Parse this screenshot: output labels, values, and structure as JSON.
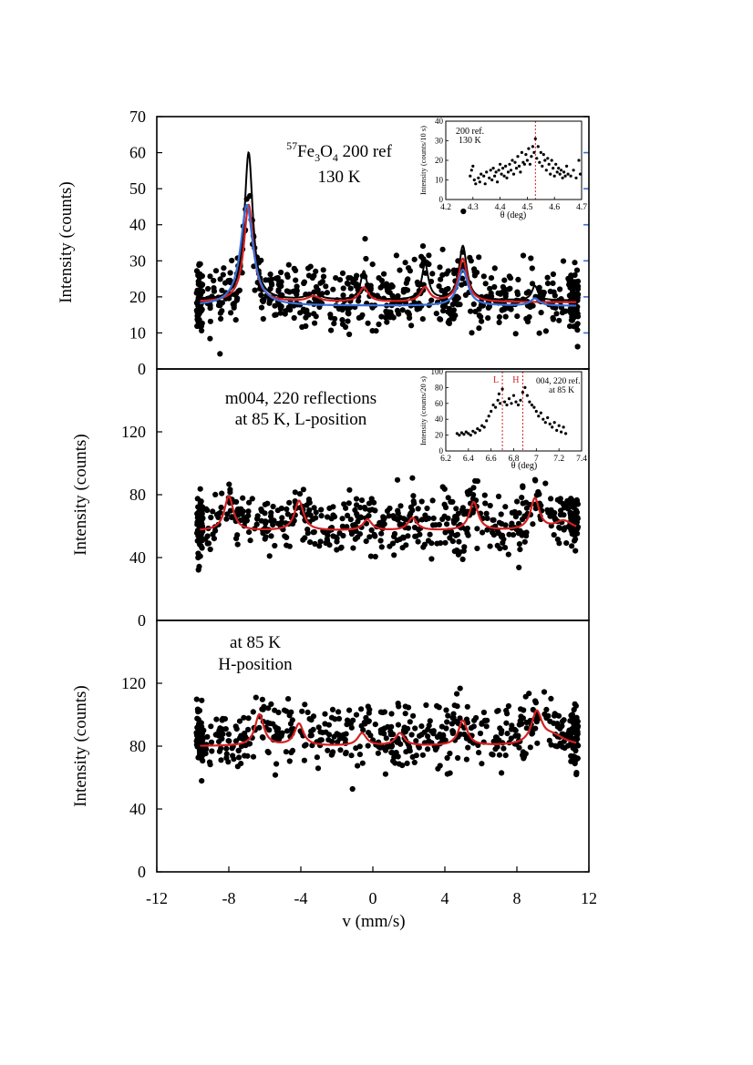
{
  "figure": {
    "xlabel": "v (mm/s)",
    "x_ticks": [
      -12,
      -8,
      -4,
      0,
      4,
      8,
      12
    ]
  },
  "chart_data": [
    {
      "id": "panel-a",
      "type": "scatter",
      "ylabel": "Intensity (counts)",
      "xlim": [
        -12,
        12
      ],
      "ylim": [
        0,
        70
      ],
      "y_ticks": [
        0,
        10,
        20,
        30,
        40,
        50,
        60,
        70
      ],
      "annotations": {
        "label_sup": "57",
        "label_main": "Fe",
        "label_sub1": "3",
        "label_mid": "O",
        "label_sub2": "4",
        "label_tail": " 200 ref",
        "temperature": "130 K"
      },
      "scatter": {
        "x_range": [
          -9.8,
          11.4
        ],
        "n": 700,
        "baseline": 19,
        "spread": 4.5
      },
      "series": [
        {
          "color": "#000000",
          "baseline": 19,
          "peaks": [
            {
              "x": -6.9,
              "h": 41,
              "w": 0.28
            },
            {
              "x": -0.5,
              "h": 8,
              "w": 0.22
            },
            {
              "x": 2.9,
              "h": 10,
              "w": 0.22
            },
            {
              "x": 5.0,
              "h": 15,
              "w": 0.26
            },
            {
              "x": 9.0,
              "h": 4,
              "w": 0.2
            },
            {
              "x": -3.3,
              "h": 2,
              "w": 0.4
            }
          ]
        },
        {
          "color": "#d42020",
          "baseline": 18.5,
          "peaks": [
            {
              "x": -6.9,
              "h": 27,
              "w": 0.32
            },
            {
              "x": -0.5,
              "h": 4,
              "w": 0.3
            },
            {
              "x": 2.9,
              "h": 4,
              "w": 0.3
            },
            {
              "x": 5.0,
              "h": 12,
              "w": 0.3
            },
            {
              "x": -3.3,
              "h": 1.5,
              "w": 0.4
            }
          ]
        },
        {
          "color": "#3a6fd8",
          "baseline": 17.5,
          "peaks": [
            {
              "x": -7.0,
              "h": 28,
              "w": 0.42
            },
            {
              "x": 5.0,
              "h": 10,
              "w": 0.34
            },
            {
              "x": 9.0,
              "h": 2,
              "w": 0.3
            }
          ]
        }
      ],
      "inset": {
        "label1": "200 ref.",
        "label2": "130 K",
        "ylabel": "Intensity (counts/10 s)",
        "xlabel": "θ (deg)",
        "xlim": [
          4.2,
          4.7
        ],
        "ylim": [
          0,
          40
        ],
        "x_ticks": [
          4.2,
          4.3,
          4.4,
          4.5,
          4.6,
          4.7
        ],
        "y_ticks": [
          0,
          10,
          20,
          30,
          40
        ],
        "markers": [
          {
            "x": 4.53,
            "label": ""
          }
        ],
        "points": [
          [
            4.29,
            12
          ],
          [
            4.295,
            15
          ],
          [
            4.3,
            17
          ],
          [
            4.305,
            10
          ],
          [
            4.31,
            8
          ],
          [
            4.32,
            11
          ],
          [
            4.325,
            9
          ],
          [
            4.33,
            13
          ],
          [
            4.34,
            12
          ],
          [
            4.345,
            8
          ],
          [
            4.35,
            14
          ],
          [
            4.36,
            11
          ],
          [
            4.365,
            15
          ],
          [
            4.37,
            10
          ],
          [
            4.375,
            16
          ],
          [
            4.38,
            12
          ],
          [
            4.385,
            14
          ],
          [
            4.39,
            9
          ],
          [
            4.395,
            15
          ],
          [
            4.4,
            18
          ],
          [
            4.405,
            13
          ],
          [
            4.41,
            16
          ],
          [
            4.415,
            12
          ],
          [
            4.42,
            17
          ],
          [
            4.425,
            11
          ],
          [
            4.43,
            14
          ],
          [
            4.435,
            18
          ],
          [
            4.44,
            15
          ],
          [
            4.445,
            20
          ],
          [
            4.45,
            13
          ],
          [
            4.455,
            19
          ],
          [
            4.46,
            16
          ],
          [
            4.465,
            22
          ],
          [
            4.47,
            17
          ],
          [
            4.475,
            14
          ],
          [
            4.48,
            24
          ],
          [
            4.485,
            19
          ],
          [
            4.49,
            18
          ],
          [
            4.495,
            23
          ],
          [
            4.5,
            20
          ],
          [
            4.505,
            26
          ],
          [
            4.51,
            18
          ],
          [
            4.515,
            22
          ],
          [
            4.52,
            27
          ],
          [
            4.525,
            24
          ],
          [
            4.53,
            31
          ],
          [
            4.535,
            21
          ],
          [
            4.54,
            27
          ],
          [
            4.545,
            19
          ],
          [
            4.55,
            24
          ],
          [
            4.555,
            17
          ],
          [
            4.56,
            23
          ],
          [
            4.565,
            20
          ],
          [
            4.57,
            15
          ],
          [
            4.575,
            21
          ],
          [
            4.58,
            18
          ],
          [
            4.585,
            13
          ],
          [
            4.59,
            20
          ],
          [
            4.595,
            16
          ],
          [
            4.6,
            12
          ],
          [
            4.605,
            18
          ],
          [
            4.61,
            14
          ],
          [
            4.615,
            16
          ],
          [
            4.62,
            13
          ],
          [
            4.625,
            15
          ],
          [
            4.63,
            11
          ],
          [
            4.635,
            14
          ],
          [
            4.64,
            12
          ],
          [
            4.645,
            17
          ],
          [
            4.65,
            13
          ],
          [
            4.66,
            12
          ],
          [
            4.67,
            15
          ],
          [
            4.68,
            11
          ],
          [
            4.69,
            20
          ],
          [
            4.695,
            13
          ]
        ]
      }
    },
    {
      "id": "panel-b",
      "type": "scatter",
      "ylabel": "Intensity (counts)",
      "xlim": [
        -12,
        12
      ],
      "ylim": [
        0,
        160
      ],
      "y_ticks": [
        0,
        40,
        80,
        120
      ],
      "annotations": {
        "line1": "m004, 220 reflections",
        "line2": "at 85 K, L-position"
      },
      "scatter": {
        "x_range": [
          -9.8,
          11.4
        ],
        "n": 640,
        "baseline": 60,
        "spread": 9
      },
      "series": [
        {
          "color": "#d42020",
          "baseline": 57,
          "peaks": [
            {
              "x": -8.0,
              "h": 22,
              "w": 0.3
            },
            {
              "x": -4.1,
              "h": 19,
              "w": 0.3
            },
            {
              "x": -0.3,
              "h": 7,
              "w": 0.3
            },
            {
              "x": 2.2,
              "h": 8,
              "w": 0.3
            },
            {
              "x": 5.6,
              "h": 18,
              "w": 0.3
            },
            {
              "x": 9.0,
              "h": 20,
              "w": 0.3
            },
            {
              "x": 10.6,
              "h": 6,
              "w": 0.6
            }
          ]
        }
      ],
      "inset": {
        "label1": "004, 220 ref.",
        "label2": "at 85 K",
        "ylabel": "Intensity (counts/20 s)",
        "xlabel": "θ (deg)",
        "xlim": [
          6.2,
          7.4
        ],
        "ylim": [
          0,
          100
        ],
        "x_ticks": [
          6.2,
          6.4,
          6.6,
          6.8,
          7.0,
          7.2,
          7.4
        ],
        "y_ticks": [
          0,
          20,
          40,
          60,
          80,
          100
        ],
        "markers": [
          {
            "x": 6.7,
            "label": "L"
          },
          {
            "x": 6.88,
            "label": "H"
          }
        ],
        "points": [
          [
            6.3,
            22
          ],
          [
            6.32,
            20
          ],
          [
            6.34,
            23
          ],
          [
            6.36,
            21
          ],
          [
            6.38,
            24
          ],
          [
            6.4,
            22
          ],
          [
            6.42,
            20
          ],
          [
            6.44,
            25
          ],
          [
            6.46,
            23
          ],
          [
            6.48,
            28
          ],
          [
            6.5,
            26
          ],
          [
            6.52,
            32
          ],
          [
            6.54,
            30
          ],
          [
            6.56,
            38
          ],
          [
            6.58,
            44
          ],
          [
            6.6,
            50
          ],
          [
            6.62,
            58
          ],
          [
            6.64,
            55
          ],
          [
            6.66,
            64
          ],
          [
            6.67,
            72
          ],
          [
            6.68,
            60
          ],
          [
            6.7,
            78
          ],
          [
            6.72,
            62
          ],
          [
            6.74,
            58
          ],
          [
            6.76,
            66
          ],
          [
            6.78,
            60
          ],
          [
            6.8,
            70
          ],
          [
            6.82,
            62
          ],
          [
            6.84,
            58
          ],
          [
            6.86,
            64
          ],
          [
            6.88,
            74
          ],
          [
            6.9,
            80
          ],
          [
            6.92,
            70
          ],
          [
            6.94,
            62
          ],
          [
            6.96,
            58
          ],
          [
            6.98,
            55
          ],
          [
            7.0,
            50
          ],
          [
            7.02,
            44
          ],
          [
            7.04,
            48
          ],
          [
            7.06,
            40
          ],
          [
            7.08,
            36
          ],
          [
            7.1,
            42
          ],
          [
            7.12,
            34
          ],
          [
            7.14,
            30
          ],
          [
            7.16,
            36
          ],
          [
            7.18,
            26
          ],
          [
            7.2,
            32
          ],
          [
            7.22,
            24
          ],
          [
            7.24,
            30
          ],
          [
            7.26,
            22
          ]
        ]
      }
    },
    {
      "id": "panel-c",
      "type": "scatter",
      "ylabel": "Intensity (counts)",
      "xlim": [
        -12,
        12
      ],
      "ylim": [
        0,
        160
      ],
      "y_ticks": [
        0,
        40,
        80,
        120
      ],
      "annotations": {
        "line1": "at 85 K",
        "line2": "H-position"
      },
      "scatter": {
        "x_range": [
          -9.8,
          11.4
        ],
        "n": 640,
        "baseline": 84,
        "spread": 10
      },
      "series": [
        {
          "color": "#d42020",
          "baseline": 80,
          "peaks": [
            {
              "x": -6.3,
              "h": 20,
              "w": 0.3
            },
            {
              "x": -4.1,
              "h": 14,
              "w": 0.3
            },
            {
              "x": -0.6,
              "h": 8,
              "w": 0.3
            },
            {
              "x": 1.5,
              "h": 8,
              "w": 0.3
            },
            {
              "x": 5.0,
              "h": 16,
              "w": 0.3
            },
            {
              "x": 9.1,
              "h": 20,
              "w": 0.35
            },
            {
              "x": 10.0,
              "h": 6,
              "w": 0.8
            }
          ]
        }
      ]
    }
  ]
}
